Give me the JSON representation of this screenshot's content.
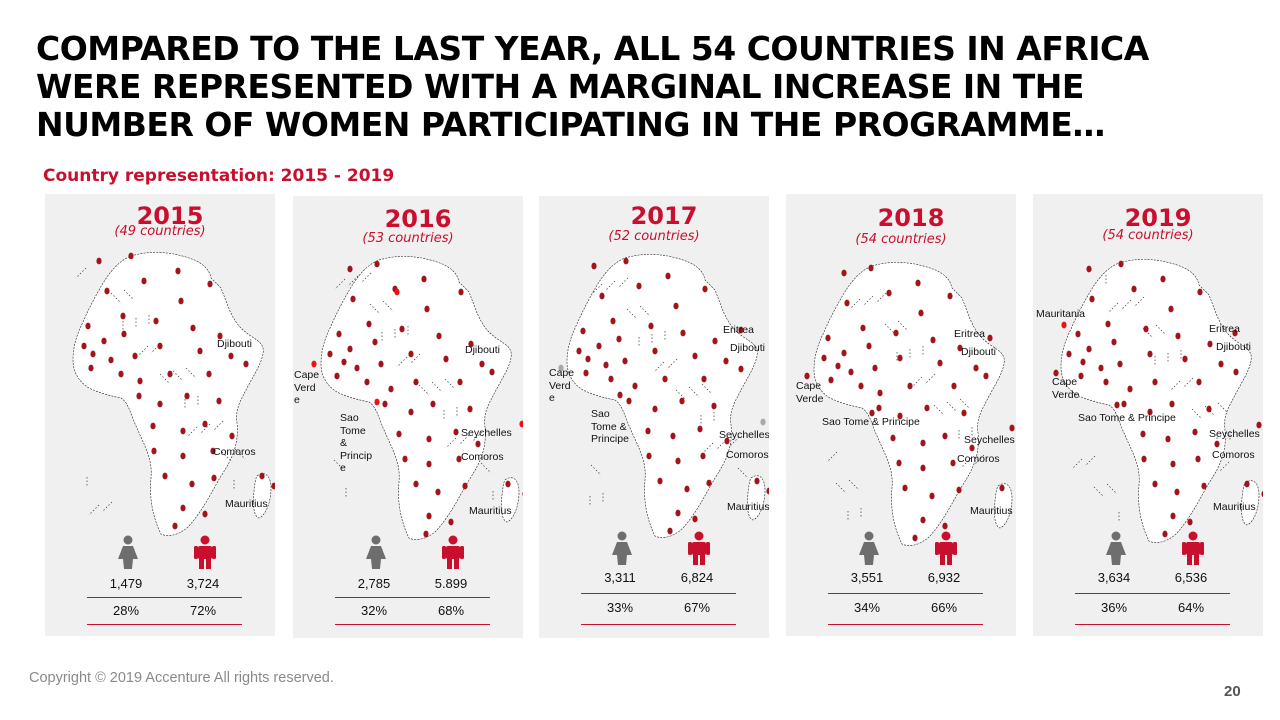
{
  "title": {
    "lines": [
      "COMPARED TO THE LAST YEAR, ALL 54 COUNTRIES IN AFRICA",
      "WERE REPRESENTED WITH A MARGINAL INCREASE IN THE",
      "NUMBER OF WOMEN PARTICIPATING IN THE PROGRAMME…"
    ]
  },
  "subtitle": "Country representation: 2015 - 2019",
  "colors": {
    "accent": "#c8102e",
    "panel": "#f1f0f0",
    "female_icon": "#6e6e6e",
    "male_icon": "#c8102e"
  },
  "icons": {
    "female": "female-person-icon",
    "male": "male-person-icon",
    "map": "africa-map-icon"
  },
  "panels": [
    {
      "year": "2015",
      "countries": "(49 countries)",
      "female_count": "1,479",
      "male_count": "3,724",
      "female_pct": "28%",
      "male_pct": "72%",
      "labels": [
        "Djibouti",
        "Comoros",
        "Mauritius"
      ]
    },
    {
      "year": "2016",
      "countries": "(53 countries)",
      "female_count": "2,785",
      "male_count": "5.899",
      "female_pct": "32%",
      "male_pct": "68%",
      "labels": [
        "Djibouti",
        "Cape\nVerd\ne",
        "Sao\nTome\n&\nPrincip\ne",
        "Seychelles",
        "Comoros",
        "Mauritius"
      ]
    },
    {
      "year": "2017",
      "countries": "(52 countries)",
      "female_count": "3,311",
      "male_count": "6,824",
      "female_pct": "33%",
      "male_pct": "67%",
      "labels": [
        "Eritrea",
        "Djibouti",
        "Cape\nVerd\ne",
        "Sao\nTome &\nPrincipe",
        "Seychelles",
        "Comoros",
        "Mauritius"
      ]
    },
    {
      "year": "2018",
      "countries": "(54 countries)",
      "female_count": "3,551",
      "male_count": "6,932",
      "female_pct": "34%",
      "male_pct": "66%",
      "labels": [
        "Eritrea",
        "Djibouti",
        "Cape\nVerde",
        "Sao Tome & Principe",
        "Seychelles",
        "Comoros",
        "Mauritius"
      ]
    },
    {
      "year": "2019",
      "countries": "(54 countries)",
      "female_count": "3,634",
      "male_count": "6,536",
      "female_pct": "36%",
      "male_pct": "64%",
      "labels": [
        "Mauritania",
        "Eritrea",
        "Djibouti",
        "Cape\nVerde",
        "Sao Tome & Principe",
        "Seychelles",
        "Comoros",
        "Mauritius"
      ]
    }
  ],
  "footer": {
    "copyright": "Copyright © 2019 Accenture  All rights reserved.",
    "page_number": "20"
  }
}
